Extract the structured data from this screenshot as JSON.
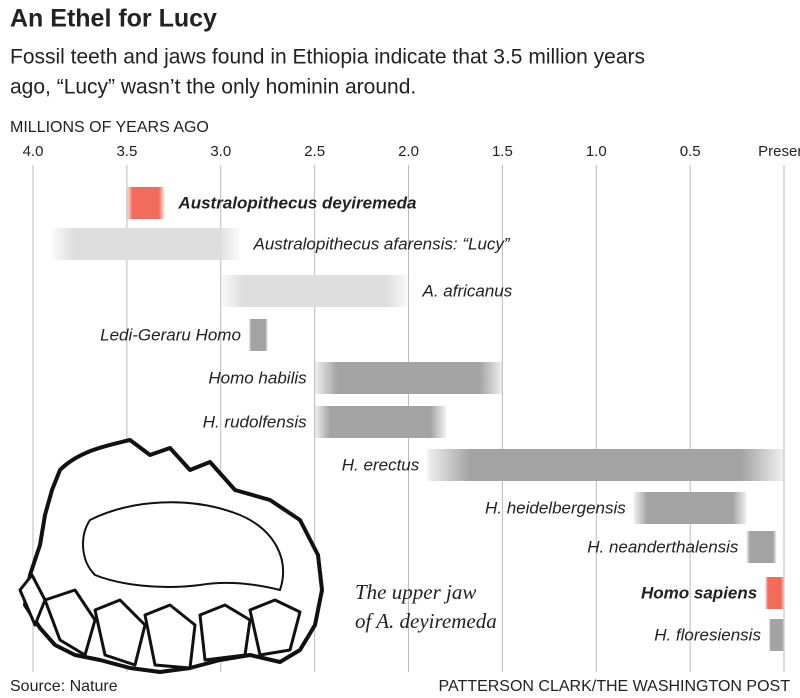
{
  "chart_data": {
    "type": "range",
    "title": "An Ethel for Lucy",
    "subtitle": [
      "Fossil teeth and jaws found in Ethiopia indicate that 3.5 million years",
      "ago, “Lucy” wasn’t the only hominin around."
    ],
    "x_label": "MILLIONS OF YEARS AGO",
    "xlim": [
      4,
      0
    ],
    "xticks": [
      {
        "value": 4,
        "label": "4.0"
      },
      3.5,
      {
        "value": 3,
        "label": "3.0"
      },
      2.5,
      {
        "value": 2,
        "label": "2.0"
      },
      1.5,
      {
        "value": 1,
        "label": "1.0"
      },
      0.5,
      {
        "value": 0,
        "label": "Present"
      }
    ],
    "grid": true,
    "series": [
      {
        "name": "Australopithecus deyiremeda",
        "values": [
          3.5,
          3.3
        ],
        "color": "#f26b5b",
        "bold": true,
        "label_side": "right"
      },
      {
        "name": "Australopithecus afarensis: “Lucy”",
        "values": [
          3.9,
          2.9
        ],
        "color": "#dedede",
        "label_side": "right"
      },
      {
        "name": "A. africanus",
        "values": [
          3.0,
          2.0
        ],
        "color": "#dedede",
        "label_side": "right"
      },
      {
        "name": "Ledi-Geraru Homo",
        "values": [
          2.85,
          2.75
        ],
        "color": "#a3a3a3"
      },
      {
        "name": "Homo habilis",
        "values": [
          2.5,
          1.5
        ],
        "color": "#a3a3a3"
      },
      {
        "name": "H. rudolfensis",
        "values": [
          2.5,
          1.8
        ],
        "color": "#a3a3a3"
      },
      {
        "name": "H. erectus",
        "values": [
          1.9,
          0
        ],
        "color": "#a3a3a3"
      },
      {
        "name": "H. heidelbergensis",
        "values": [
          0.8,
          0.2
        ],
        "color": "#a3a3a3"
      },
      {
        "name": "H. neanderthalensis",
        "values": [
          0.2,
          0.04
        ],
        "color": "#a3a3a3"
      },
      {
        "name": "Homo sapiens",
        "values": [
          0.1,
          0
        ],
        "color": "#f26b5b",
        "bold": true
      },
      {
        "name": "H. floresiensis",
        "values": [
          0.08,
          0
        ],
        "color": "#a3a3a3"
      }
    ],
    "annotation": [
      "The upper jaw",
      "of A. deyiremeda"
    ],
    "source": "Source: Nature",
    "credit": "PATTERSON CLARK/THE WASHINGTON POST"
  }
}
